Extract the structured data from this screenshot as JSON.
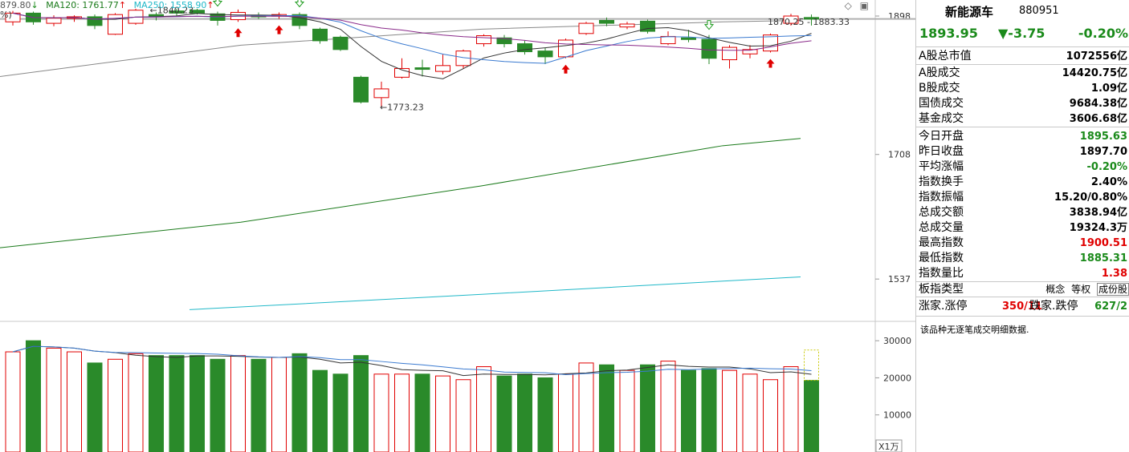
{
  "ma_legend": {
    "ma_prefix": "879.80",
    "ma120": "MA120: 1761.77",
    "ma250": "MA250: 1558.90",
    "pct_tag": "%)"
  },
  "chart_labels": {
    "high_marker": "1840.23",
    "low_marker": "1773.23",
    "last_marker": "1870.25 - 1883.33"
  },
  "axis": {
    "price_ticks": [
      "1898",
      "1708",
      "1537"
    ],
    "volume_ticks": [
      "30000",
      "20000",
      "10000"
    ],
    "volume_unit": "X1万"
  },
  "panel": {
    "name": "新能源车",
    "code": "880951",
    "price": "1893.95",
    "change": "▼-3.75",
    "change_pct": "-0.20%",
    "rows": [
      {
        "label": "A股总市值",
        "value": "1072556亿",
        "color": "black"
      },
      {
        "label": "A股成交",
        "value": "14420.75亿",
        "color": "black"
      },
      {
        "label": "B股成交",
        "value": "1.09亿",
        "color": "black"
      },
      {
        "label": "国债成交",
        "value": "9684.38亿",
        "color": "black"
      },
      {
        "label": "基金成交",
        "value": "3606.68亿",
        "color": "black"
      },
      {
        "label": "今日开盘",
        "value": "1895.63",
        "color": "green"
      },
      {
        "label": "昨日收盘",
        "value": "1897.70",
        "color": "black"
      },
      {
        "label": "平均涨幅",
        "value": "-0.20%",
        "color": "green"
      },
      {
        "label": "指数换手",
        "value": "2.40%",
        "color": "black"
      },
      {
        "label": "指数振幅",
        "value": "15.20/0.80%",
        "color": "black"
      },
      {
        "label": "总成交额",
        "value": "3838.94亿",
        "color": "black"
      },
      {
        "label": "总成交量",
        "value": "19324.3万",
        "color": "black"
      },
      {
        "label": "最高指数",
        "value": "1900.51",
        "color": "red"
      },
      {
        "label": "最低指数",
        "value": "1885.31",
        "color": "green"
      },
      {
        "label": "指数量比",
        "value": "1.38",
        "color": "red"
      }
    ],
    "index_type_label": "板指类型",
    "index_type_buttons": [
      "概念",
      "等权",
      "成份股"
    ],
    "breadth_up_label": "涨家.涨停",
    "breadth_up_value": "350/11",
    "breadth_down_label": "跌家.跌停",
    "breadth_down_value": "627/2",
    "note": "该品种无逐笔成交明细数据."
  },
  "colors": {
    "up": "#e00000",
    "down": "#2a8a2a",
    "ma120": "#1a7a1a",
    "ma250": "#20b8c8",
    "ma5": "#333333",
    "ma10": "#3a7ad0",
    "ma20": "#8a2a8a",
    "ma60": "#888888"
  },
  "chart_data": {
    "type": "candlestick",
    "price_range": [
      1480,
      1920
    ],
    "volume_range": [
      0,
      35000
    ],
    "candles": [
      {
        "o": 1890,
        "c": 1902,
        "h": 1905,
        "l": 1885,
        "v": 27000
      },
      {
        "o": 1902,
        "c": 1890,
        "h": 1904,
        "l": 1886,
        "v": 30000
      },
      {
        "o": 1888,
        "c": 1895,
        "h": 1899,
        "l": 1884,
        "v": 28000
      },
      {
        "o": 1895,
        "c": 1897,
        "h": 1899,
        "l": 1890,
        "v": 27000
      },
      {
        "o": 1897,
        "c": 1885,
        "h": 1900,
        "l": 1880,
        "v": 24000
      },
      {
        "o": 1873,
        "c": 1900,
        "h": 1902,
        "l": 1872,
        "v": 25000
      },
      {
        "o": 1888,
        "c": 1906,
        "h": 1908,
        "l": 1886,
        "v": 26500
      },
      {
        "o": 1900,
        "c": 1898,
        "h": 1903,
        "l": 1892,
        "v": 26000
      },
      {
        "o": 1905,
        "c": 1902,
        "h": 1908,
        "l": 1898,
        "v": 26000
      },
      {
        "o": 1906,
        "c": 1902,
        "h": 1908,
        "l": 1900,
        "v": 26000
      },
      {
        "o": 1901,
        "c": 1892,
        "h": 1904,
        "l": 1885,
        "v": 25000
      },
      {
        "o": 1893,
        "c": 1903,
        "h": 1907,
        "l": 1890,
        "v": 26000
      },
      {
        "o": 1899,
        "c": 1898,
        "h": 1903,
        "l": 1894,
        "v": 25000
      },
      {
        "o": 1898,
        "c": 1900,
        "h": 1903,
        "l": 1894,
        "v": 25500
      },
      {
        "o": 1900,
        "c": 1885,
        "h": 1903,
        "l": 1880,
        "v": 26500
      },
      {
        "o": 1880,
        "c": 1864,
        "h": 1882,
        "l": 1860,
        "v": 22000
      },
      {
        "o": 1869,
        "c": 1852,
        "h": 1871,
        "l": 1850,
        "v": 21000
      },
      {
        "o": 1814,
        "c": 1780,
        "h": 1816,
        "l": 1778,
        "v": 26000
      },
      {
        "o": 1786,
        "c": 1798,
        "h": 1808,
        "l": 1773,
        "v": 21000
      },
      {
        "o": 1814,
        "c": 1826,
        "h": 1840,
        "l": 1812,
        "v": 21000
      },
      {
        "o": 1827,
        "c": 1825,
        "h": 1838,
        "l": 1815,
        "v": 21000
      },
      {
        "o": 1822,
        "c": 1830,
        "h": 1845,
        "l": 1818,
        "v": 20500
      },
      {
        "o": 1830,
        "c": 1850,
        "h": 1852,
        "l": 1826,
        "v": 19500
      },
      {
        "o": 1860,
        "c": 1871,
        "h": 1873,
        "l": 1856,
        "v": 23000
      },
      {
        "o": 1868,
        "c": 1860,
        "h": 1872,
        "l": 1855,
        "v": 20500
      },
      {
        "o": 1860,
        "c": 1849,
        "h": 1864,
        "l": 1845,
        "v": 21000
      },
      {
        "o": 1850,
        "c": 1842,
        "h": 1854,
        "l": 1832,
        "v": 20000
      },
      {
        "o": 1842,
        "c": 1865,
        "h": 1867,
        "l": 1840,
        "v": 21000
      },
      {
        "o": 1874,
        "c": 1888,
        "h": 1890,
        "l": 1872,
        "v": 24000
      },
      {
        "o": 1892,
        "c": 1888,
        "h": 1896,
        "l": 1884,
        "v": 23500
      },
      {
        "o": 1883,
        "c": 1887,
        "h": 1890,
        "l": 1880,
        "v": 22000
      },
      {
        "o": 1891,
        "c": 1877,
        "h": 1893,
        "l": 1874,
        "v": 23500
      },
      {
        "o": 1860,
        "c": 1870,
        "h": 1877,
        "l": 1858,
        "v": 24500
      },
      {
        "o": 1868,
        "c": 1867,
        "h": 1879,
        "l": 1862,
        "v": 22000
      },
      {
        "o": 1866,
        "c": 1840,
        "h": 1872,
        "l": 1832,
        "v": 22500
      },
      {
        "o": 1838,
        "c": 1855,
        "h": 1858,
        "l": 1826,
        "v": 22000
      },
      {
        "o": 1846,
        "c": 1852,
        "h": 1858,
        "l": 1840,
        "v": 21000
      },
      {
        "o": 1850,
        "c": 1872,
        "h": 1874,
        "l": 1848,
        "v": 19500
      },
      {
        "o": 1888,
        "c": 1898,
        "h": 1901,
        "l": 1885,
        "v": 23000
      },
      {
        "o": 1896,
        "c": 1894,
        "h": 1900,
        "l": 1885,
        "v": 19300
      }
    ]
  }
}
